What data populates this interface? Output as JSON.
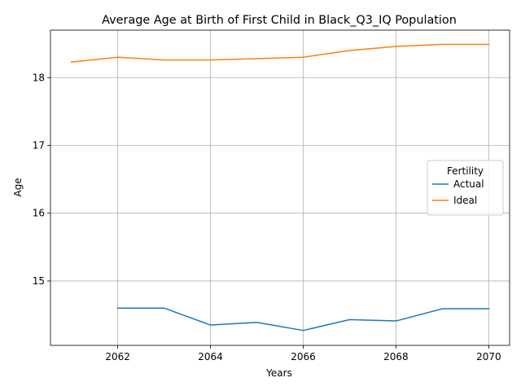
{
  "chart_data": {
    "type": "line",
    "title": "Average Age at Birth of First Child in Black_Q3_IQ Population",
    "xlabel": "Years",
    "ylabel": "Age",
    "xlim": [
      2060.55,
      2070.45
    ],
    "ylim": [
      14.05,
      18.7
    ],
    "xticks": [
      2062,
      2064,
      2066,
      2068,
      2070
    ],
    "yticks": [
      15,
      16,
      17,
      18
    ],
    "grid": true,
    "legend": {
      "title": "Fertility",
      "placement": "center-right"
    },
    "series": [
      {
        "name": "Actual",
        "color": "#1f77b4",
        "x": [
          2062,
          2063,
          2064,
          2065,
          2066,
          2067,
          2068,
          2069,
          2070
        ],
        "y": [
          14.6,
          14.6,
          14.35,
          14.39,
          14.27,
          14.43,
          14.41,
          14.59,
          14.59
        ]
      },
      {
        "name": "Ideal",
        "color": "#ff7f0e",
        "x": [
          2061,
          2062,
          2063,
          2064,
          2065,
          2066,
          2067,
          2068,
          2069,
          2070
        ],
        "y": [
          18.23,
          18.3,
          18.26,
          18.26,
          18.28,
          18.3,
          18.4,
          18.46,
          18.49,
          18.49
        ]
      }
    ]
  }
}
